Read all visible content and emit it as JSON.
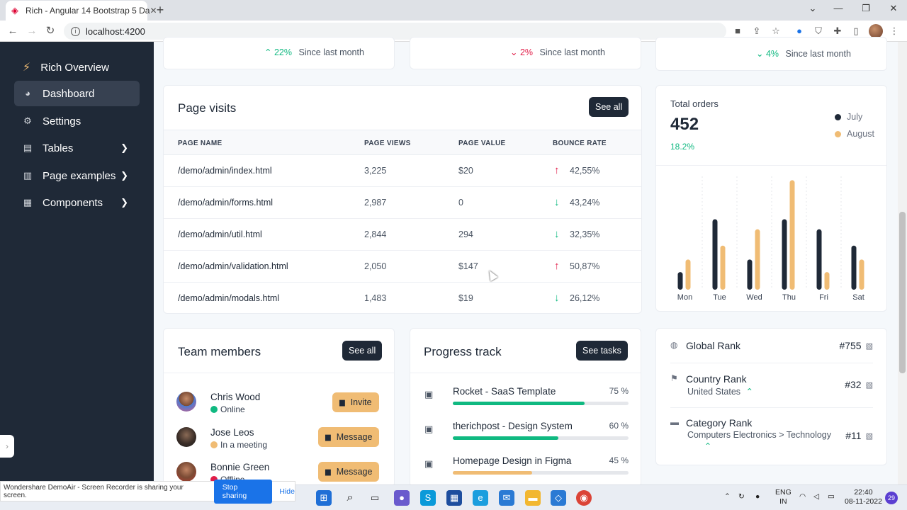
{
  "browser": {
    "tab_title": "Rich - Angular 14 Bootstrap 5 Da",
    "url": "localhost:4200"
  },
  "sidebar": {
    "brand": "Rich Overview",
    "items": [
      {
        "label": "Dashboard",
        "icon": "pie-chart-icon",
        "active": true
      },
      {
        "label": "Settings",
        "icon": "gear-icon"
      },
      {
        "label": "Tables",
        "icon": "table-icon"
      },
      {
        "label": "Page examples",
        "icon": "pages-icon"
      },
      {
        "label": "Components",
        "icon": "archive-icon"
      }
    ]
  },
  "stats": [
    {
      "change": "22%",
      "direction": "up",
      "label": "Since last month"
    },
    {
      "change": "2%",
      "direction": "down",
      "label": "Since last month"
    },
    {
      "change": "4%",
      "direction": "down-green",
      "label": "Since last month"
    }
  ],
  "page_visits": {
    "title": "Page visits",
    "button": "See all",
    "headers": [
      "PAGE NAME",
      "PAGE VIEWS",
      "PAGE VALUE",
      "BOUNCE RATE"
    ],
    "rows": [
      {
        "name": "/demo/admin/index.html",
        "views": "3,225",
        "value": "$20",
        "bounce": "42,55%",
        "trend": "up"
      },
      {
        "name": "/demo/admin/forms.html",
        "views": "2,987",
        "value": "0",
        "bounce": "43,24%",
        "trend": "down"
      },
      {
        "name": "/demo/admin/util.html",
        "views": "2,844",
        "value": "294",
        "bounce": "32,35%",
        "trend": "down"
      },
      {
        "name": "/demo/admin/validation.html",
        "views": "2,050",
        "value": "$147",
        "bounce": "50,87%",
        "trend": "up"
      },
      {
        "name": "/demo/admin/modals.html",
        "views": "1,483",
        "value": "$19",
        "bounce": "26,12%",
        "trend": "down"
      }
    ]
  },
  "orders": {
    "title": "Total orders",
    "value": "452",
    "change": "18.2%",
    "legend": [
      "July",
      "August"
    ],
    "colors": {
      "july": "#1f2937",
      "august": "#f0bc74"
    }
  },
  "chart_data": {
    "type": "bar",
    "categories": [
      "Mon",
      "Tue",
      "Wed",
      "Thu",
      "Fri",
      "Sat"
    ],
    "series": [
      {
        "name": "July",
        "values": [
          1.4,
          5.6,
          2.4,
          5.6,
          4.8,
          3.5
        ]
      },
      {
        "name": "August",
        "values": [
          2.4,
          3.5,
          4.8,
          8.7,
          1.4,
          2.4
        ]
      }
    ],
    "ylim": [
      0,
      9
    ],
    "grid": true,
    "legend_position": "top-right"
  },
  "team": {
    "title": "Team members",
    "button": "See all",
    "members": [
      {
        "name": "Chris Wood",
        "status": "Online",
        "status_color": "#10b981",
        "action": "Invite"
      },
      {
        "name": "Jose Leos",
        "status": "In a meeting",
        "status_color": "#f0bc74",
        "action": "Message"
      },
      {
        "name": "Bonnie Green",
        "status": "Offline",
        "status_color": "#e11d48",
        "action": "Message"
      }
    ]
  },
  "progress": {
    "title": "Progress track",
    "button": "See tasks",
    "items": [
      {
        "name": "Rocket - SaaS Template",
        "percent": "75 %",
        "value": 0.75,
        "color": "#10b981"
      },
      {
        "name": "therichpost - Design System",
        "percent": "60 %",
        "value": 0.6,
        "color": "#10b981"
      },
      {
        "name": "Homepage Design in Figma",
        "percent": "45 %",
        "value": 0.45,
        "color": "#f0bc74"
      }
    ]
  },
  "ranks": [
    {
      "label": "Global Rank",
      "value": "#755",
      "sub": ""
    },
    {
      "label": "Country Rank",
      "value": "#32",
      "sub": "United States"
    },
    {
      "label": "Category Rank",
      "value": "#11",
      "sub": "Computers Electronics > Technology"
    }
  ],
  "share": {
    "message": "Wondershare DemoAir - Screen Recorder is sharing your screen.",
    "stop": "Stop sharing",
    "hide": "Hide"
  },
  "taskbar": {
    "lang": "ENG",
    "region": "IN",
    "time": "22:40",
    "date": "08-11-2022",
    "notifications": "29"
  }
}
